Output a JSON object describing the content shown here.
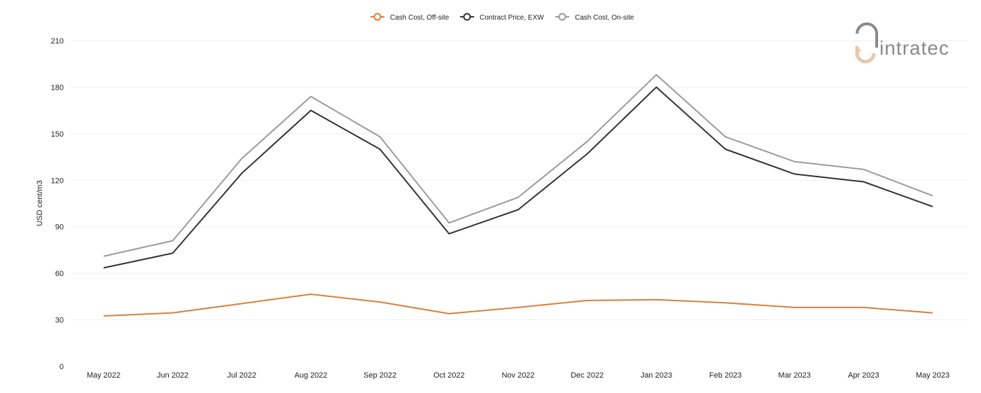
{
  "chart_data": {
    "type": "line",
    "categories": [
      "May 2022",
      "Jun 2022",
      "Jul 2022",
      "Aug 2022",
      "Sep 2022",
      "Oct 2022",
      "Nov 2022",
      "Dec 2022",
      "Jan 2023",
      "Feb 2023",
      "Mar 2023",
      "Apr 2023",
      "May 2023"
    ],
    "series": [
      {
        "name": "Cash Cost, Off-site",
        "color": "#d9803a",
        "values": [
          32.5,
          34.5,
          40.5,
          46.5,
          41.5,
          34.0,
          38.0,
          42.5,
          43.0,
          41.0,
          38.0,
          38.0,
          34.5
        ]
      },
      {
        "name": "Contract Price, EXW",
        "color": "#333333",
        "values": [
          63.5,
          73.0,
          124.5,
          165.0,
          140.0,
          85.5,
          101.0,
          137.0,
          180.0,
          140.0,
          124.0,
          119.0,
          103.0
        ]
      },
      {
        "name": "Cash Cost, On-site",
        "color": "#9b9b9b",
        "values": [
          71.0,
          81.0,
          134.0,
          174.0,
          148.0,
          92.5,
          109.0,
          145.0,
          188.0,
          148.0,
          132.0,
          127.0,
          110.0
        ]
      }
    ],
    "yticks": [
      0,
      30,
      60,
      90,
      120,
      150,
      180,
      210
    ],
    "ylim": [
      0,
      210
    ],
    "ylabel": "USD cent/m3",
    "xlabel": "",
    "title": "",
    "grid": true,
    "legend_position": "top-center"
  },
  "logo": {
    "text": "intratec"
  }
}
